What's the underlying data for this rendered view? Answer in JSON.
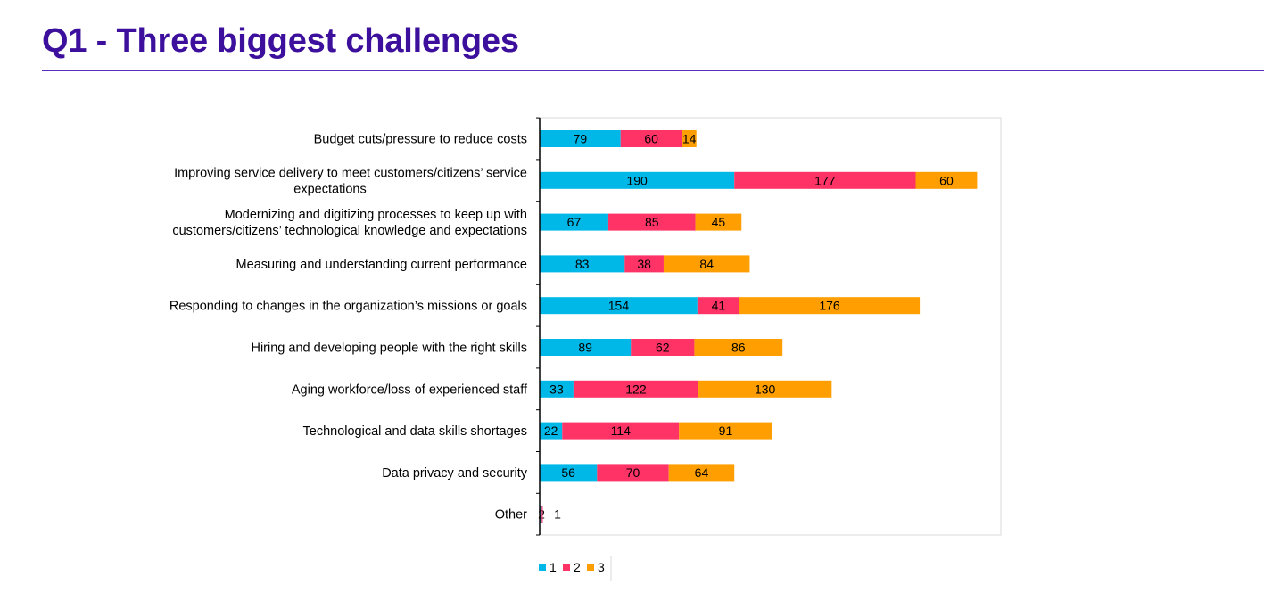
{
  "title": "Q1 - Three biggest challenges",
  "chart_data": {
    "type": "bar",
    "orientation": "horizontal",
    "stacked": true,
    "categories": [
      [
        "Budget cuts/pressure to reduce costs"
      ],
      [
        "Improving service delivery to meet customers/citizens’ service",
        "expectations"
      ],
      [
        "Modernizing and digitizing processes to keep up with",
        "customers/citizens’ technological knowledge and expectations"
      ],
      [
        "Measuring and understanding current performance"
      ],
      [
        "Responding to changes in the organization’s missions or goals"
      ],
      [
        "Hiring and developing people with the right skills"
      ],
      [
        "Aging workforce/loss of experienced staff"
      ],
      [
        "Technological and data skills shortages"
      ],
      [
        "Data privacy and security"
      ],
      [
        "Other"
      ]
    ],
    "series": [
      {
        "name": "1",
        "color": "#00b8e8",
        "values": [
          79,
          190,
          67,
          83,
          154,
          89,
          33,
          22,
          56,
          2
        ]
      },
      {
        "name": "2",
        "color": "#ff3366",
        "values": [
          60,
          177,
          85,
          38,
          41,
          62,
          122,
          114,
          70,
          1
        ]
      },
      {
        "name": "3",
        "color": "#ff9e00",
        "values": [
          14,
          60,
          45,
          84,
          176,
          86,
          130,
          91,
          64,
          0
        ]
      }
    ],
    "data_labels": [
      [
        "79",
        "60",
        "14"
      ],
      [
        "190",
        "177",
        "60"
      ],
      [
        "67",
        "85",
        "45"
      ],
      [
        "83",
        "38",
        "84"
      ],
      [
        "154",
        "41",
        "176"
      ],
      [
        "89",
        "62",
        "86"
      ],
      [
        "33",
        "122",
        "130"
      ],
      [
        "22",
        "114",
        "91"
      ],
      [
        "56",
        "70",
        "64"
      ],
      [
        "2",
        "1",
        ""
      ]
    ],
    "xlim": [
      0,
      450
    ],
    "grid": false,
    "legend": "bottom"
  }
}
